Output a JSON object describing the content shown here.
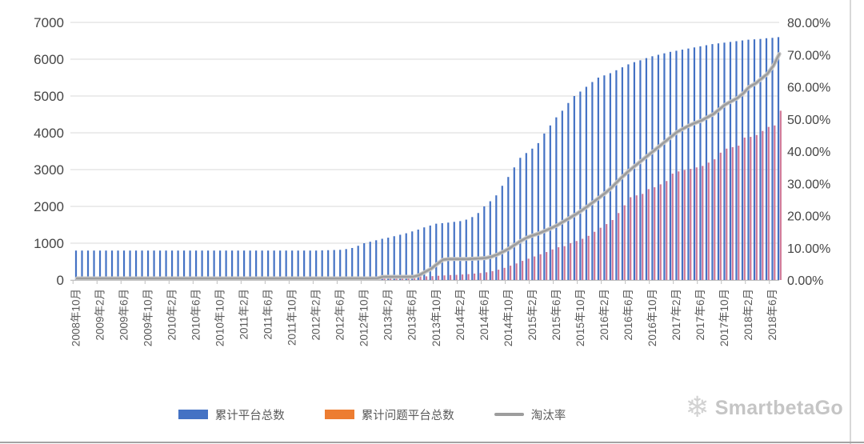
{
  "chart_data": {
    "type": "bar",
    "subtype": "monthly bars with secondary-axis line (combo chart)",
    "title": "",
    "x_axis": {
      "tick_every": 4,
      "tick_labels": [
        "2008年10月",
        "2009年2月",
        "2009年6月",
        "2009年10月",
        "2010年2月",
        "2010年6月",
        "2010年10月",
        "2011年2月",
        "2011年6月",
        "2011年10月",
        "2012年2月",
        "2012年6月",
        "2012年10月",
        "2013年2月",
        "2013年6月",
        "2013年10月",
        "2014年2月",
        "2014年6月",
        "2014年10月",
        "2015年2月",
        "2015年6月",
        "2015年10月",
        "2016年2月",
        "2016年6月",
        "2016年10月",
        "2017年2月",
        "2017年6月",
        "2017年10月",
        "2018年2月",
        "2018年6月"
      ]
    },
    "left_axis": {
      "min": 0,
      "max": 7000,
      "tick_labels": [
        "0",
        "1000",
        "2000",
        "3000",
        "4000",
        "5000",
        "6000",
        "7000"
      ]
    },
    "right_axis": {
      "min": 0,
      "max": 80,
      "tick_labels": [
        "0.00%",
        "10.00%",
        "20.00%",
        "30.00%",
        "40.00%",
        "50.00%",
        "60.00%",
        "70.00%",
        "80.00%"
      ]
    },
    "grid_color": "#d9d9d9",
    "axis_text_color": "#454545",
    "x_text_color": "#595959",
    "legend_position": "bottom-center",
    "series": [
      {
        "name": "累计平台总数",
        "type": "bar",
        "axis": "left",
        "color": "#4472C4",
        "values": [
          800,
          800,
          800,
          800,
          800,
          800,
          800,
          800,
          800,
          800,
          800,
          800,
          800,
          800,
          800,
          800,
          800,
          800,
          800,
          800,
          800,
          800,
          800,
          800,
          800,
          800,
          800,
          800,
          800,
          800,
          800,
          800,
          800,
          800,
          800,
          800,
          800,
          800,
          800,
          800,
          800,
          805,
          810,
          815,
          820,
          840,
          870,
          930,
          1000,
          1040,
          1080,
          1120,
          1150,
          1190,
          1230,
          1270,
          1320,
          1370,
          1430,
          1480,
          1530,
          1545,
          1560,
          1580,
          1600,
          1640,
          1710,
          1820,
          2000,
          2140,
          2300,
          2560,
          2800,
          3060,
          3320,
          3450,
          3570,
          3720,
          3980,
          4200,
          4420,
          4600,
          4810,
          5000,
          5120,
          5250,
          5380,
          5500,
          5560,
          5620,
          5700,
          5780,
          5860,
          5920,
          5970,
          6030,
          6080,
          6120,
          6160,
          6200,
          6230,
          6260,
          6290,
          6320,
          6350,
          6380,
          6410,
          6430,
          6450,
          6470,
          6490,
          6510,
          6530,
          6540,
          6550,
          6570,
          6580,
          6600
        ]
      },
      {
        "name": "累计问题平台总数",
        "type": "bar",
        "axis": "left",
        "color_legend": "#ED7D31",
        "color_bars": "#cf7796",
        "values": [
          5,
          5,
          5,
          5,
          5,
          5,
          5,
          5,
          5,
          5,
          5,
          5,
          5,
          5,
          5,
          5,
          5,
          5,
          5,
          5,
          5,
          10,
          10,
          10,
          10,
          10,
          10,
          10,
          10,
          10,
          10,
          10,
          10,
          10,
          10,
          10,
          10,
          10,
          10,
          10,
          10,
          15,
          20,
          25,
          30,
          35,
          40,
          45,
          50,
          55,
          60,
          65,
          70,
          75,
          80,
          85,
          90,
          95,
          100,
          105,
          115,
          125,
          135,
          140,
          150,
          160,
          175,
          190,
          210,
          240,
          280,
          330,
          390,
          450,
          520,
          580,
          640,
          700,
          760,
          830,
          890,
          920,
          1000,
          1060,
          1120,
          1200,
          1310,
          1420,
          1520,
          1630,
          1820,
          2030,
          2250,
          2300,
          2340,
          2470,
          2520,
          2600,
          2690,
          2890,
          2950,
          2990,
          3020,
          3060,
          3100,
          3190,
          3280,
          3460,
          3570,
          3610,
          3650,
          3870,
          3890,
          3940,
          4050,
          4160,
          4200,
          4600
        ]
      },
      {
        "name": "淘汰率",
        "type": "line",
        "axis": "right",
        "color": "#9d9d9d",
        "casing_color": "#c9c9c9",
        "values": [
          0.5,
          0.5,
          0.5,
          0.5,
          0.5,
          0.5,
          0.5,
          0.5,
          0.5,
          0.5,
          0.5,
          0.5,
          0.5,
          0.5,
          0.5,
          0.5,
          0.5,
          0.5,
          0.5,
          0.5,
          0.5,
          0.5,
          0.5,
          0.5,
          0.5,
          0.5,
          0.5,
          0.5,
          0.5,
          0.5,
          0.5,
          0.5,
          0.5,
          0.5,
          0.5,
          0.5,
          0.5,
          0.5,
          0.5,
          0.5,
          0.5,
          0.5,
          0.5,
          0.5,
          0.5,
          0.5,
          0.5,
          0.5,
          0.5,
          0.5,
          0.5,
          1.0,
          1.0,
          1.0,
          1.0,
          1.0,
          1.0,
          1.5,
          2.5,
          3.5,
          5.0,
          6.3,
          6.5,
          6.5,
          6.5,
          6.5,
          6.6,
          6.7,
          6.8,
          7.2,
          7.9,
          8.8,
          9.8,
          11.0,
          12.2,
          13.2,
          13.9,
          14.5,
          15.3,
          16.1,
          17.0,
          18.1,
          19.2,
          20.3,
          21.5,
          22.8,
          24.2,
          25.6,
          27.0,
          28.6,
          30.5,
          32.3,
          34.0,
          35.5,
          37.0,
          38.5,
          40.0,
          41.5,
          43.0,
          44.5,
          46.0,
          47.0,
          48.0,
          48.8,
          49.5,
          50.5,
          51.5,
          53.0,
          54.5,
          55.5,
          56.5,
          58.0,
          60.0,
          61.0,
          62.5,
          64.0,
          66.5,
          70.2
        ]
      }
    ]
  },
  "legend": {
    "items": [
      {
        "label": "累计平台总数"
      },
      {
        "label": "累计问题平台总数"
      },
      {
        "label": "淘汰率"
      }
    ]
  },
  "watermark": {
    "icon": "snowflake-icon",
    "icon_char": "❄",
    "text": "SmartbetaGo",
    "color": "#c5c5c5"
  }
}
